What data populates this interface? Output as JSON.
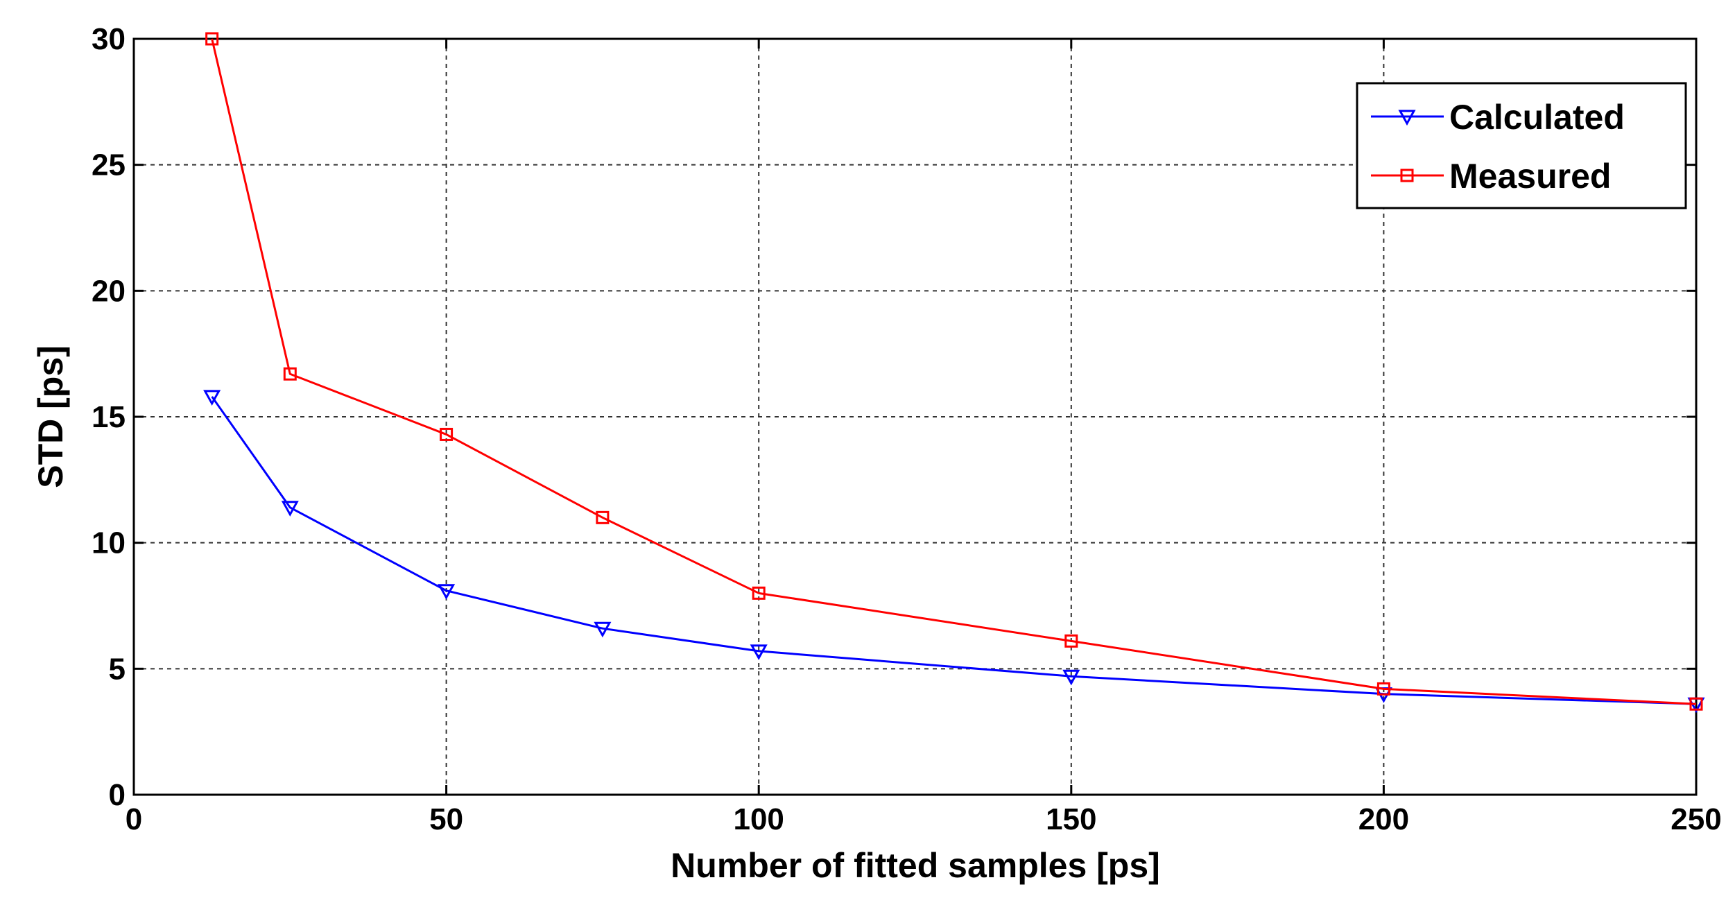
{
  "chart_data": {
    "type": "line",
    "title": "",
    "xlabel": "Number of fitted samples [ps]",
    "ylabel": "STD [ps]",
    "xlim": [
      0,
      250
    ],
    "ylim": [
      0,
      30
    ],
    "xticks": [
      0,
      50,
      100,
      150,
      200,
      250
    ],
    "yticks": [
      0,
      5,
      10,
      15,
      20,
      25,
      30
    ],
    "grid": true,
    "legend_position": "top-right",
    "series": [
      {
        "name": "Calculated",
        "color": "#0000ff",
        "marker": "triangle-down",
        "x": [
          12.5,
          25,
          50,
          75,
          100,
          150,
          200,
          250
        ],
        "y": [
          15.8,
          11.4,
          8.1,
          6.6,
          5.7,
          4.7,
          4.0,
          3.6
        ]
      },
      {
        "name": "Measured",
        "color": "#ff0000",
        "marker": "square",
        "x": [
          12.5,
          25,
          50,
          75,
          100,
          150,
          200,
          250
        ],
        "y": [
          30.0,
          16.7,
          14.3,
          11.0,
          8.0,
          6.1,
          4.2,
          3.6
        ]
      }
    ]
  }
}
